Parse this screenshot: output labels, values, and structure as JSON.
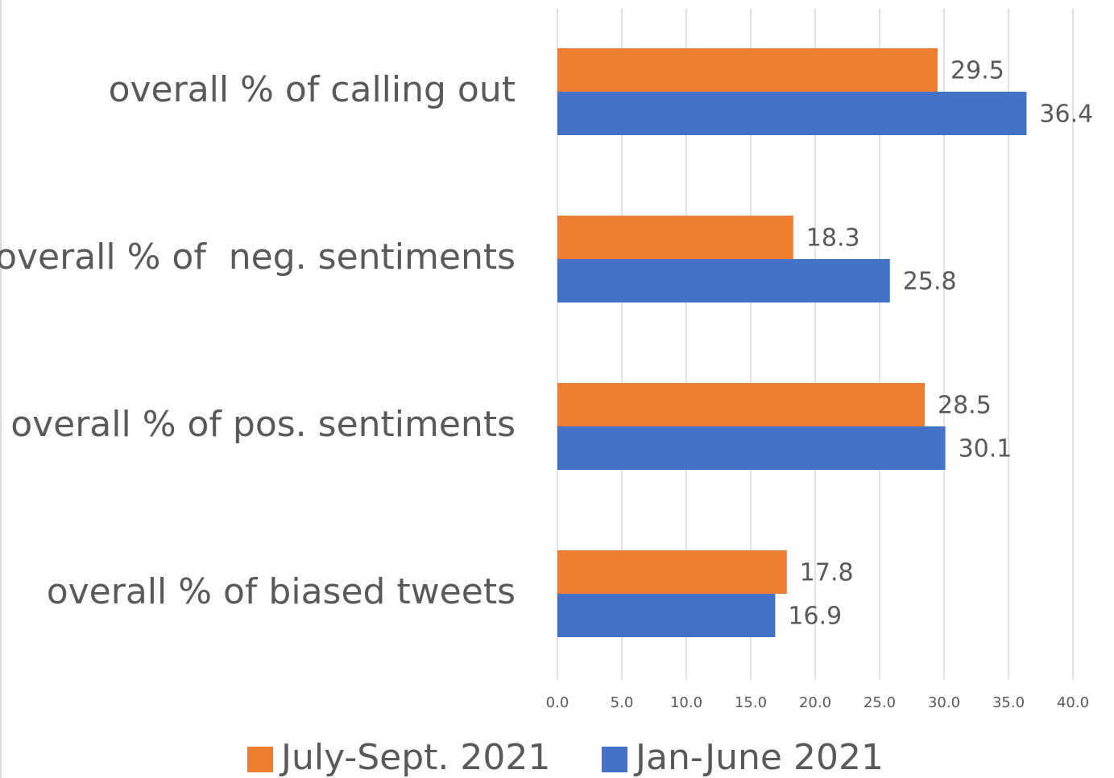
{
  "chart_data": {
    "type": "hbar",
    "categories": [
      "overall % of calling out",
      "overall % of  neg. sentiments",
      "overall % of pos. sentiments",
      "overall % of biased tweets"
    ],
    "series": [
      {
        "name": "July-Sept. 2021",
        "color": "#ed7d31",
        "values": [
          29.5,
          18.3,
          28.5,
          17.8
        ]
      },
      {
        "name": "Jan-June 2021",
        "color": "#4472c4",
        "values": [
          36.4,
          25.8,
          30.1,
          16.9
        ]
      }
    ],
    "xlim": [
      0,
      40
    ],
    "xticks": [
      {
        "value": 0,
        "label": "0.0"
      },
      {
        "value": 5,
        "label": "5.0"
      },
      {
        "value": 10,
        "label": "10.0"
      },
      {
        "value": 15,
        "label": "15.0"
      },
      {
        "value": 20,
        "label": "20.0"
      },
      {
        "value": 25,
        "label": "25.0"
      },
      {
        "value": 30,
        "label": "30.0"
      },
      {
        "value": 35,
        "label": "35.0"
      },
      {
        "value": 40,
        "label": "40.0"
      }
    ],
    "grid": true,
    "legend": "bottom"
  }
}
